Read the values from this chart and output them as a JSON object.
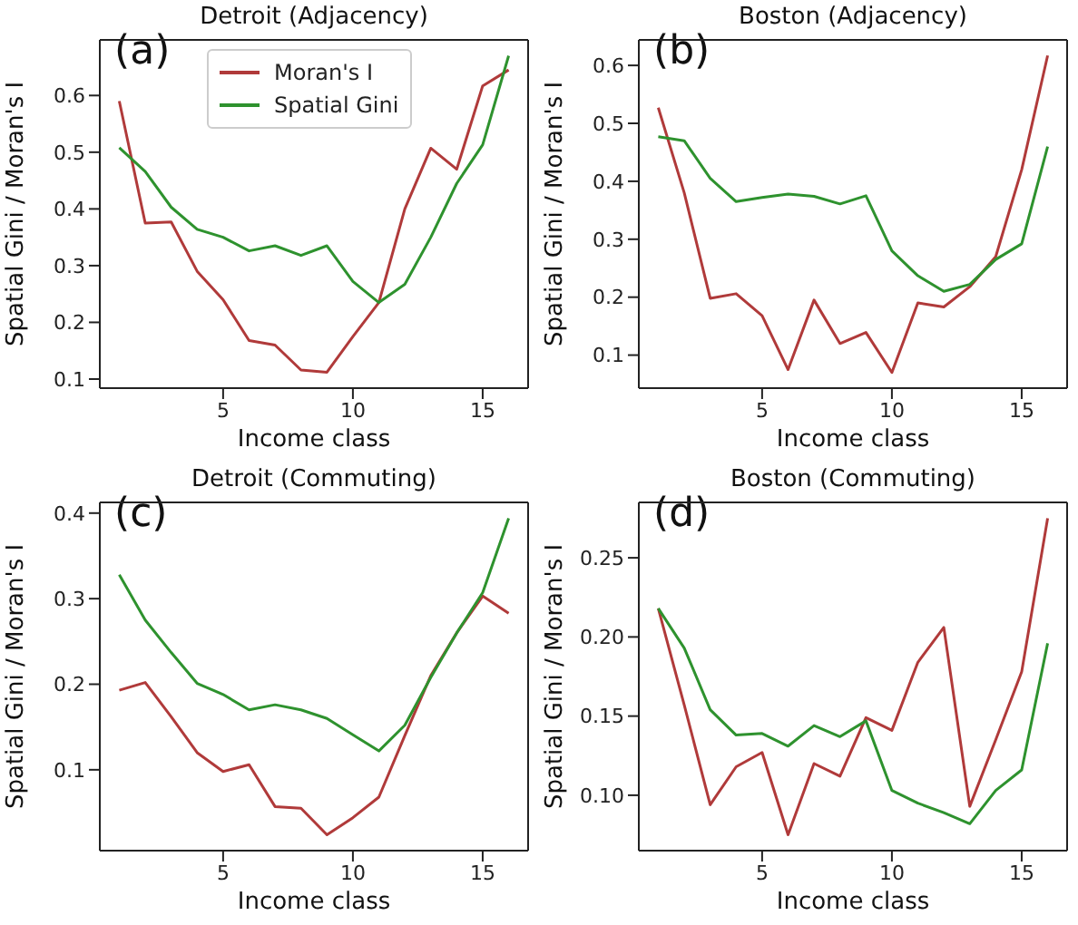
{
  "chart_data": [
    {
      "type": "line",
      "title": "Detroit (Adjacency)",
      "xlabel": "Income class",
      "ylabel": "Spatial Gini / Moran's I",
      "annotations": [
        "(a)"
      ],
      "legend": "top",
      "x": [
        1,
        2,
        3,
        4,
        5,
        6,
        7,
        8,
        9,
        10,
        11,
        12,
        13,
        14,
        15,
        16
      ],
      "xlim": [
        0.25,
        16.75
      ],
      "xticks": [
        5,
        10,
        15
      ],
      "ylim": [
        0.084,
        0.698
      ],
      "yticks": [
        0.1,
        0.2,
        0.3,
        0.4,
        0.5,
        0.6
      ],
      "series": [
        {
          "name": "Moran's I",
          "color": "#b03a3a",
          "values": [
            0.59,
            0.375,
            0.377,
            0.29,
            0.24,
            0.168,
            0.16,
            0.116,
            0.112,
            0.175,
            0.235,
            0.4,
            0.507,
            0.47,
            0.617,
            0.645
          ]
        },
        {
          "name": "Spatial Gini",
          "color": "#2e922e",
          "values": [
            0.508,
            0.466,
            0.403,
            0.364,
            0.35,
            0.326,
            0.335,
            0.318,
            0.335,
            0.272,
            0.235,
            0.267,
            0.35,
            0.445,
            0.513,
            0.67
          ]
        }
      ]
    },
    {
      "type": "line",
      "title": "Boston (Adjacency)",
      "xlabel": "Income class",
      "ylabel": "Spatial Gini / Moran's I",
      "annotations": [
        "(b)"
      ],
      "x": [
        1,
        2,
        3,
        4,
        5,
        6,
        7,
        8,
        9,
        10,
        11,
        12,
        13,
        14,
        15,
        16
      ],
      "xlim": [
        0.25,
        16.75
      ],
      "xticks": [
        5,
        10,
        15
      ],
      "ylim": [
        0.043,
        0.644
      ],
      "yticks": [
        0.1,
        0.2,
        0.3,
        0.4,
        0.5,
        0.6
      ],
      "series": [
        {
          "color": "#b03a3a",
          "values": [
            0.527,
            0.38,
            0.198,
            0.206,
            0.168,
            0.075,
            0.195,
            0.12,
            0.139,
            0.07,
            0.19,
            0.183,
            0.218,
            0.27,
            0.42,
            0.617
          ]
        },
        {
          "color": "#2e922e",
          "values": [
            0.477,
            0.47,
            0.405,
            0.365,
            0.372,
            0.378,
            0.374,
            0.361,
            0.375,
            0.28,
            0.237,
            0.21,
            0.222,
            0.265,
            0.292,
            0.46
          ]
        }
      ]
    },
    {
      "type": "line",
      "title": "Detroit (Commuting)",
      "xlabel": "Income class",
      "ylabel": "Spatial Gini / Moran's I",
      "annotations": [
        "(c)"
      ],
      "x": [
        1,
        2,
        3,
        4,
        5,
        6,
        7,
        8,
        9,
        10,
        11,
        12,
        13,
        14,
        15,
        16
      ],
      "xlim": [
        0.25,
        16.75
      ],
      "xticks": [
        5,
        10,
        15
      ],
      "ylim": [
        0.0055,
        0.4125
      ],
      "yticks": [
        0.1,
        0.2,
        0.3,
        0.4
      ],
      "series": [
        {
          "color": "#b03a3a",
          "values": [
            0.193,
            0.202,
            0.162,
            0.12,
            0.098,
            0.106,
            0.057,
            0.055,
            0.024,
            0.044,
            0.068,
            0.14,
            0.21,
            0.26,
            0.303,
            0.283
          ]
        },
        {
          "color": "#2e922e",
          "values": [
            0.328,
            0.275,
            0.237,
            0.201,
            0.188,
            0.17,
            0.176,
            0.17,
            0.16,
            0.141,
            0.122,
            0.152,
            0.208,
            0.26,
            0.307,
            0.394
          ]
        }
      ]
    },
    {
      "type": "line",
      "title": "Boston (Commuting)",
      "xlabel": "Income class",
      "ylabel": "Spatial Gini / Moran's I",
      "annotations": [
        "(d)"
      ],
      "x": [
        1,
        2,
        3,
        4,
        5,
        6,
        7,
        8,
        9,
        10,
        11,
        12,
        13,
        14,
        15,
        16
      ],
      "xlim": [
        0.25,
        16.75
      ],
      "xticks": [
        5,
        10,
        15
      ],
      "ylim": [
        0.065,
        0.285
      ],
      "yticks": [
        {
          "value": 0.1,
          "label": "0.10"
        },
        {
          "value": 0.15,
          "label": "0.15"
        },
        {
          "value": 0.2,
          "label": "0.20"
        },
        {
          "value": 0.25,
          "label": "0.25"
        }
      ],
      "series": [
        {
          "color": "#b03a3a",
          "values": [
            0.218,
            0.157,
            0.094,
            0.118,
            0.127,
            0.075,
            0.12,
            0.112,
            0.149,
            0.141,
            0.184,
            0.206,
            0.093,
            0.135,
            0.178,
            0.275
          ]
        },
        {
          "color": "#2e922e",
          "values": [
            0.218,
            0.193,
            0.154,
            0.138,
            0.139,
            0.131,
            0.144,
            0.137,
            0.147,
            0.103,
            0.095,
            0.089,
            0.082,
            0.103,
            0.116,
            0.196
          ]
        }
      ]
    }
  ]
}
